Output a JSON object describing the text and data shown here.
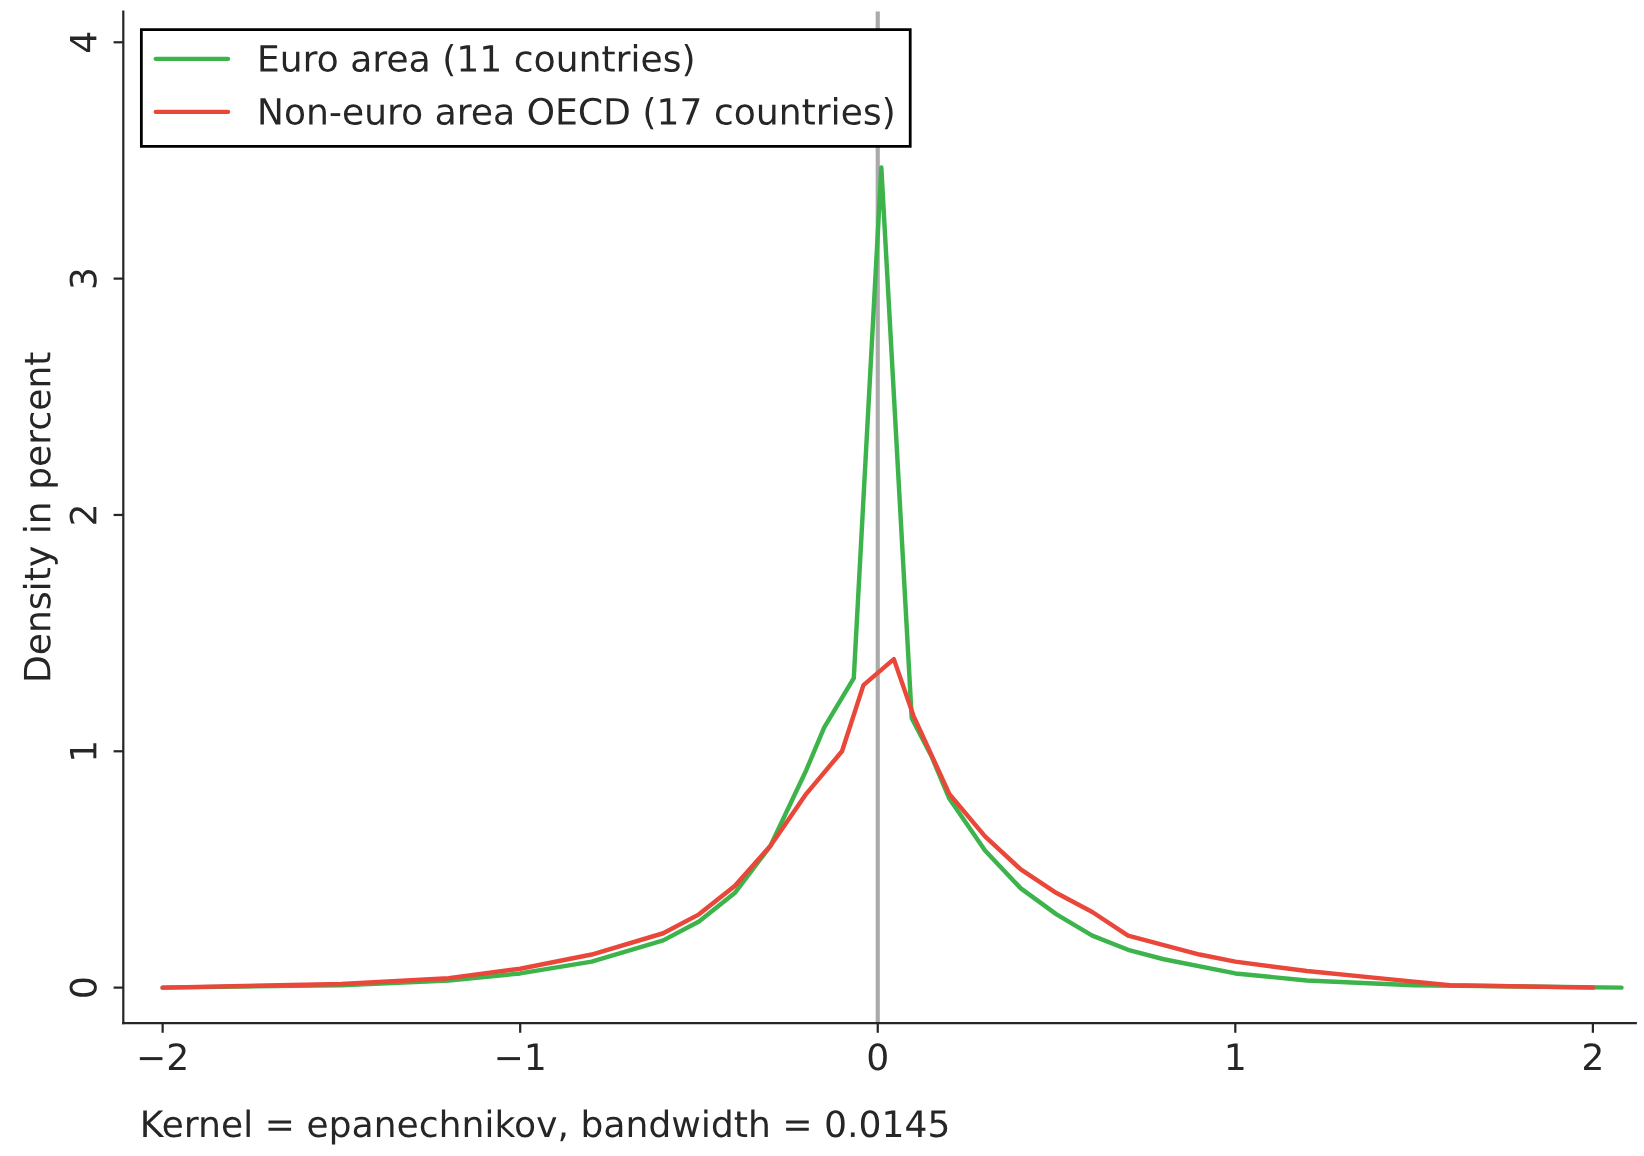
{
  "chart_data": {
    "type": "line",
    "ylabel": "Density in percent",
    "annotations": [
      "Kernel = epanechnikov, bandwidth = 0.0145"
    ],
    "series": [
      {
        "name": "Euro area (11 countries)",
        "color": "#3cb44b",
        "x": [
          -2.0,
          -1.5,
          -1.2,
          -1.0,
          -0.8,
          -0.6,
          -0.5,
          -0.4,
          -0.3,
          -0.2,
          -0.15,
          -0.067,
          0.01,
          0.095,
          0.15,
          0.2,
          0.3,
          0.4,
          0.5,
          0.6,
          0.7,
          0.8,
          1.0,
          1.2,
          1.5,
          2.08
        ],
        "values": [
          0,
          0.01,
          0.03,
          0.06,
          0.11,
          0.2,
          0.28,
          0.4,
          0.6,
          0.92,
          1.1,
          1.31,
          3.47,
          1.14,
          0.98,
          0.8,
          0.58,
          0.42,
          0.31,
          0.22,
          0.16,
          0.12,
          0.06,
          0.03,
          0.01,
          0
        ]
      },
      {
        "name": "Non-euro area OECD (17 countries)",
        "color": "#e8473a",
        "x": [
          -2.0,
          -1.5,
          -1.2,
          -1.0,
          -0.8,
          -0.6,
          -0.5,
          -0.4,
          -0.3,
          -0.2,
          -0.1,
          -0.04,
          0.045,
          0.1,
          0.2,
          0.3,
          0.4,
          0.5,
          0.6,
          0.7,
          0.8,
          0.9,
          1.0,
          1.2,
          1.4,
          1.6,
          2.0
        ],
        "values": [
          0,
          0.015,
          0.04,
          0.08,
          0.14,
          0.23,
          0.31,
          0.43,
          0.6,
          0.82,
          1.0,
          1.28,
          1.39,
          1.15,
          0.82,
          0.64,
          0.5,
          0.4,
          0.32,
          0.22,
          0.18,
          0.14,
          0.11,
          0.07,
          0.04,
          0.01,
          0
        ]
      }
    ],
    "ref_lines": [
      {
        "axis": "x",
        "value": 0,
        "color": "#aaaaaa"
      }
    ],
    "xlim": [
      -2.11,
      2.12
    ],
    "xticks": [
      {
        "value": -2,
        "label": "−2"
      },
      {
        "value": -1,
        "label": "−1"
      },
      0,
      1,
      2
    ],
    "ylim": [
      -0.15,
      4.13
    ],
    "yticks": [
      0,
      1,
      2,
      3,
      4
    ],
    "grid": false,
    "legend": "top left"
  }
}
